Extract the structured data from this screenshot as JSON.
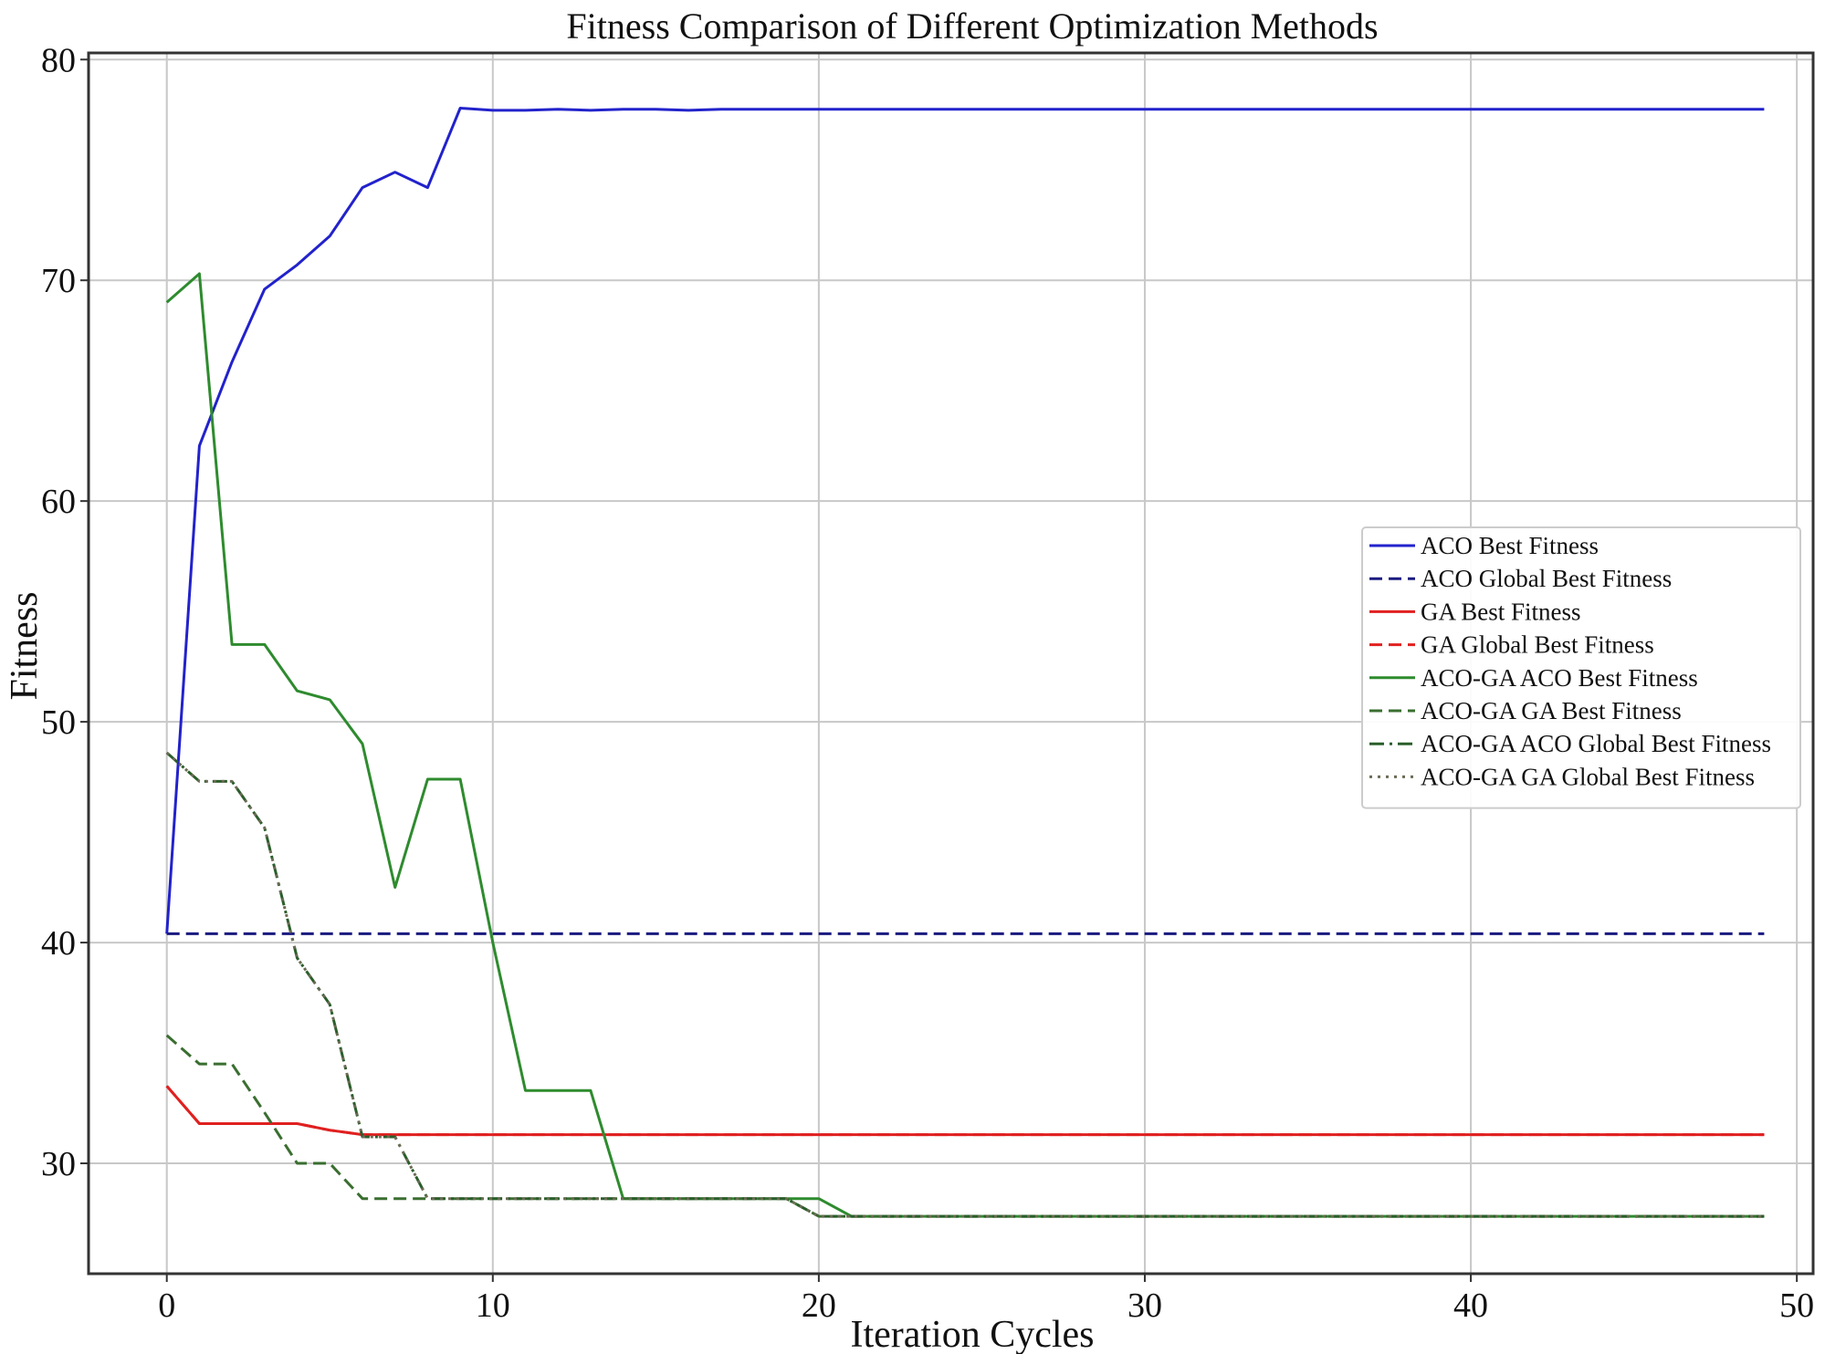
{
  "chart_data": {
    "type": "line",
    "title": "Fitness Comparison of Different Optimization Methods",
    "xlabel": "Iteration Cycles",
    "ylabel": "Fitness",
    "xlim": [
      -2.4,
      50.5
    ],
    "ylim": [
      25.0,
      80.3
    ],
    "xticks": [
      0,
      10,
      20,
      30,
      40,
      50
    ],
    "yticks": [
      30,
      40,
      50,
      60,
      70,
      80
    ],
    "grid": true,
    "legend_position": "center-right",
    "x": [
      0,
      1,
      2,
      3,
      4,
      5,
      6,
      7,
      8,
      9,
      10,
      11,
      12,
      13,
      14,
      15,
      16,
      17,
      18,
      19,
      20,
      21,
      22,
      23,
      24,
      25,
      26,
      27,
      28,
      29,
      30,
      31,
      32,
      33,
      34,
      35,
      36,
      37,
      38,
      39,
      40,
      41,
      42,
      43,
      44,
      45,
      46,
      47,
      48,
      49
    ],
    "series": [
      {
        "name": "ACO Best Fitness",
        "color": "#2222cc",
        "style": "solid",
        "values": [
          40.4,
          62.5,
          66.3,
          69.6,
          70.7,
          72.0,
          74.2,
          74.9,
          74.2,
          77.8,
          77.7,
          77.7,
          77.75,
          77.7,
          77.75,
          77.75,
          77.7,
          77.75,
          77.75,
          77.75,
          77.75,
          77.75,
          77.75,
          77.75,
          77.75,
          77.75,
          77.75,
          77.75,
          77.75,
          77.75,
          77.75,
          77.75,
          77.75,
          77.75,
          77.75,
          77.75,
          77.75,
          77.75,
          77.75,
          77.75,
          77.75,
          77.75,
          77.75,
          77.75,
          77.75,
          77.75,
          77.75,
          77.75,
          77.75,
          77.75
        ]
      },
      {
        "name": "ACO Global Best Fitness",
        "color": "#1a1a80",
        "style": "dashed",
        "values": [
          40.4,
          40.4,
          40.4,
          40.4,
          40.4,
          40.4,
          40.4,
          40.4,
          40.4,
          40.4,
          40.4,
          40.4,
          40.4,
          40.4,
          40.4,
          40.4,
          40.4,
          40.4,
          40.4,
          40.4,
          40.4,
          40.4,
          40.4,
          40.4,
          40.4,
          40.4,
          40.4,
          40.4,
          40.4,
          40.4,
          40.4,
          40.4,
          40.4,
          40.4,
          40.4,
          40.4,
          40.4,
          40.4,
          40.4,
          40.4,
          40.4,
          40.4,
          40.4,
          40.4,
          40.4,
          40.4,
          40.4,
          40.4,
          40.4,
          40.4
        ]
      },
      {
        "name": "GA Best Fitness",
        "color": "#e02020",
        "style": "solid",
        "values": [
          33.5,
          31.8,
          31.8,
          31.8,
          31.8,
          31.5,
          31.3,
          31.3,
          31.3,
          31.3,
          31.3,
          31.3,
          31.3,
          31.3,
          31.3,
          31.3,
          31.3,
          31.3,
          31.3,
          31.3,
          31.3,
          31.3,
          31.3,
          31.3,
          31.3,
          31.3,
          31.3,
          31.3,
          31.3,
          31.3,
          31.3,
          31.3,
          31.3,
          31.3,
          31.3,
          31.3,
          31.3,
          31.3,
          31.3,
          31.3,
          31.3,
          31.3,
          31.3,
          31.3,
          31.3,
          31.3,
          31.3,
          31.3,
          31.3,
          31.3
        ]
      },
      {
        "name": "GA Global Best Fitness",
        "color": "#e02020",
        "style": "dashed",
        "values": [
          33.5,
          31.8,
          31.8,
          31.8,
          31.8,
          31.5,
          31.3,
          31.3,
          31.3,
          31.3,
          31.3,
          31.3,
          31.3,
          31.3,
          31.3,
          31.3,
          31.3,
          31.3,
          31.3,
          31.3,
          31.3,
          31.3,
          31.3,
          31.3,
          31.3,
          31.3,
          31.3,
          31.3,
          31.3,
          31.3,
          31.3,
          31.3,
          31.3,
          31.3,
          31.3,
          31.3,
          31.3,
          31.3,
          31.3,
          31.3,
          31.3,
          31.3,
          31.3,
          31.3,
          31.3,
          31.3,
          31.3,
          31.3,
          31.3,
          31.3
        ]
      },
      {
        "name": "ACO-GA ACO Best Fitness",
        "color": "#2e8b2e",
        "style": "solid",
        "values": [
          69.0,
          70.3,
          53.5,
          53.5,
          51.4,
          51.0,
          49.0,
          42.5,
          47.4,
          47.4,
          40.0,
          33.3,
          33.3,
          33.3,
          28.4,
          28.4,
          28.4,
          28.4,
          28.4,
          28.4,
          28.4,
          27.6,
          27.6,
          27.6,
          27.6,
          27.6,
          27.6,
          27.6,
          27.6,
          27.6,
          27.6,
          27.6,
          27.6,
          27.6,
          27.6,
          27.6,
          27.6,
          27.6,
          27.6,
          27.6,
          27.6,
          27.6,
          27.6,
          27.6,
          27.6,
          27.6,
          27.6,
          27.6,
          27.6,
          27.6
        ]
      },
      {
        "name": "ACO-GA GA Best Fitness",
        "color": "#3a6e30",
        "style": "dashed",
        "values": [
          35.8,
          34.5,
          34.5,
          32.3,
          30.0,
          30.0,
          28.4,
          28.4,
          28.4,
          28.4,
          28.4,
          28.4,
          28.4,
          28.4,
          28.4,
          28.4,
          28.4,
          28.4,
          28.4,
          28.4,
          27.6,
          27.6,
          27.6,
          27.6,
          27.6,
          27.6,
          27.6,
          27.6,
          27.6,
          27.6,
          27.6,
          27.6,
          27.6,
          27.6,
          27.6,
          27.6,
          27.6,
          27.6,
          27.6,
          27.6,
          27.6,
          27.6,
          27.6,
          27.6,
          27.6,
          27.6,
          27.6,
          27.6,
          27.6,
          27.6
        ]
      },
      {
        "name": "ACO-GA ACO Global Best Fitness",
        "color": "#2a5e2a",
        "style": "dashdot",
        "values": [
          48.6,
          47.3,
          47.3,
          45.2,
          39.3,
          37.2,
          31.2,
          31.2,
          28.4,
          28.4,
          28.4,
          28.4,
          28.4,
          28.4,
          28.4,
          28.4,
          28.4,
          28.4,
          28.4,
          28.4,
          27.6,
          27.6,
          27.6,
          27.6,
          27.6,
          27.6,
          27.6,
          27.6,
          27.6,
          27.6,
          27.6,
          27.6,
          27.6,
          27.6,
          27.6,
          27.6,
          27.6,
          27.6,
          27.6,
          27.6,
          27.6,
          27.6,
          27.6,
          27.6,
          27.6,
          27.6,
          27.6,
          27.6,
          27.6,
          27.6
        ]
      },
      {
        "name": "ACO-GA GA Global Best Fitness",
        "color": "#6b6b55",
        "style": "dotted",
        "values": [
          48.6,
          47.3,
          47.3,
          45.2,
          39.3,
          37.2,
          31.2,
          31.2,
          28.4,
          28.4,
          28.4,
          28.4,
          28.4,
          28.4,
          28.4,
          28.4,
          28.4,
          28.4,
          28.4,
          28.4,
          27.6,
          27.6,
          27.6,
          27.6,
          27.6,
          27.6,
          27.6,
          27.6,
          27.6,
          27.6,
          27.6,
          27.6,
          27.6,
          27.6,
          27.6,
          27.6,
          27.6,
          27.6,
          27.6,
          27.6,
          27.6,
          27.6,
          27.6,
          27.6,
          27.6,
          27.6,
          27.6,
          27.6,
          27.6,
          27.6
        ]
      }
    ]
  }
}
